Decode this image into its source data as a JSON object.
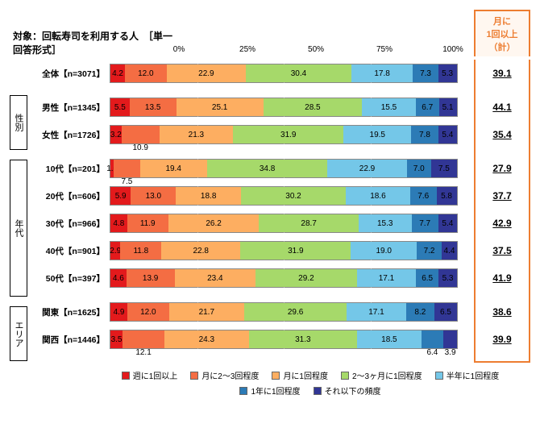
{
  "title": "対象：回転寿司を利用する人　［単一回答形式］",
  "axis_ticks": [
    "0%",
    "25%",
    "50%",
    "75%",
    "100%"
  ],
  "summary_header": [
    "月に",
    "1回以上",
    "（計）"
  ],
  "colors": {
    "c1": "#e31a1c",
    "c2": "#f46d43",
    "c3": "#fdae61",
    "c4": "#a6d96a",
    "c5": "#74c7e8",
    "c6": "#2c7bb6",
    "c7": "#313695"
  },
  "legend": [
    {
      "color": "c1",
      "label": "週に1回以上"
    },
    {
      "color": "c2",
      "label": "月に2～3回程度"
    },
    {
      "color": "c3",
      "label": "月に1回程度"
    },
    {
      "color": "c4",
      "label": "2～3ヶ月に1回程度"
    },
    {
      "color": "c5",
      "label": "半年に1回程度"
    },
    {
      "color": "c6",
      "label": "1年に1回程度"
    },
    {
      "color": "c7",
      "label": "それ以下の頻度"
    }
  ],
  "groups": [
    {
      "label": "",
      "rows": [
        {
          "label": "全体【n=3071】",
          "segs": [
            4.2,
            12.0,
            22.9,
            30.4,
            17.8,
            7.3,
            5.3
          ],
          "summary": "39.1",
          "below": []
        }
      ]
    },
    {
      "label": "性別",
      "rows": [
        {
          "label": "男性【n=1345】",
          "segs": [
            5.5,
            13.5,
            25.1,
            28.5,
            15.5,
            6.7,
            5.1
          ],
          "summary": "44.1",
          "below": []
        },
        {
          "label": "女性【n=1726】",
          "segs": [
            3.2,
            10.9,
            21.3,
            31.9,
            19.5,
            7.8,
            5.4
          ],
          "summary": "35.4",
          "below": [
            1
          ]
        }
      ]
    },
    {
      "label": "年代",
      "rows": [
        {
          "label": "10代【n=201】",
          "segs": [
            1.0,
            7.5,
            19.4,
            34.8,
            22.9,
            7.0,
            7.5
          ],
          "summary": "27.9",
          "below": [
            1
          ]
        },
        {
          "label": "20代【n=606】",
          "segs": [
            5.9,
            13.0,
            18.8,
            30.2,
            18.6,
            7.6,
            5.8
          ],
          "summary": "37.7",
          "below": []
        },
        {
          "label": "30代【n=966】",
          "segs": [
            4.8,
            11.9,
            26.2,
            28.7,
            15.3,
            7.7,
            5.4
          ],
          "summary": "42.9",
          "below": []
        },
        {
          "label": "40代【n=901】",
          "segs": [
            2.9,
            11.8,
            22.8,
            31.9,
            19.0,
            7.2,
            4.4
          ],
          "summary": "37.5",
          "below": []
        },
        {
          "label": "50代【n=397】",
          "segs": [
            4.6,
            13.9,
            23.4,
            29.2,
            17.1,
            6.5,
            5.3
          ],
          "summary": "41.9",
          "below": []
        }
      ]
    },
    {
      "label": "エリア",
      "rows": [
        {
          "label": "関東【n=1625】",
          "segs": [
            4.9,
            12.0,
            21.7,
            29.6,
            17.1,
            8.2,
            6.5
          ],
          "summary": "38.6",
          "below": []
        },
        {
          "label": "関西【n=1446】",
          "segs": [
            3.5,
            12.1,
            24.3,
            31.3,
            18.5,
            6.4,
            3.9
          ],
          "summary": "39.9",
          "below": [
            1,
            5,
            6
          ]
        }
      ]
    }
  ]
}
